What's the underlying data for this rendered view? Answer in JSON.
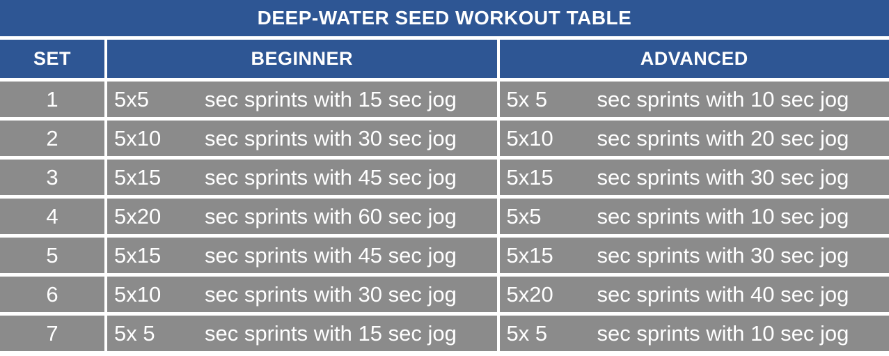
{
  "title": "DEEP-WATER SEED WORKOUT TABLE",
  "columns": [
    "SET",
    "BEGINNER",
    "ADVANCED"
  ],
  "rows": [
    {
      "set": "1",
      "beginner": {
        "reps": "5x5",
        "desc": "sec sprints with 15 sec jog"
      },
      "advanced": {
        "reps": "5x 5",
        "desc": "sec sprints with 10 sec jog"
      }
    },
    {
      "set": "2",
      "beginner": {
        "reps": "5x10",
        "desc": "sec sprints with 30 sec jog"
      },
      "advanced": {
        "reps": "5x10",
        "desc": "sec sprints with 20 sec jog"
      }
    },
    {
      "set": "3",
      "beginner": {
        "reps": "5x15",
        "desc": "sec sprints with 45 sec jog"
      },
      "advanced": {
        "reps": "5x15",
        "desc": "sec sprints with 30 sec jog"
      }
    },
    {
      "set": "4",
      "beginner": {
        "reps": "5x20",
        "desc": "sec sprints with 60 sec jog"
      },
      "advanced": {
        "reps": "5x5",
        "desc": "sec sprints with 10 sec jog"
      }
    },
    {
      "set": "5",
      "beginner": {
        "reps": "5x15",
        "desc": "sec sprints with 45 sec jog"
      },
      "advanced": {
        "reps": "5x15",
        "desc": "sec sprints with 30 sec jog"
      }
    },
    {
      "set": "6",
      "beginner": {
        "reps": "5x10",
        "desc": "sec sprints with 30 sec jog"
      },
      "advanced": {
        "reps": "5x20",
        "desc": "sec sprints with 40 sec jog"
      }
    },
    {
      "set": "7",
      "beginner": {
        "reps": "5x 5",
        "desc": "sec sprints with 15 sec jog"
      },
      "advanced": {
        "reps": "5x 5",
        "desc": "sec sprints with 10 sec jog"
      }
    }
  ],
  "colors": {
    "header_blue": "#2e5694",
    "row_gray": "#8b8b8b",
    "text_white": "#ffffff",
    "page_bg": "#ffffff"
  }
}
